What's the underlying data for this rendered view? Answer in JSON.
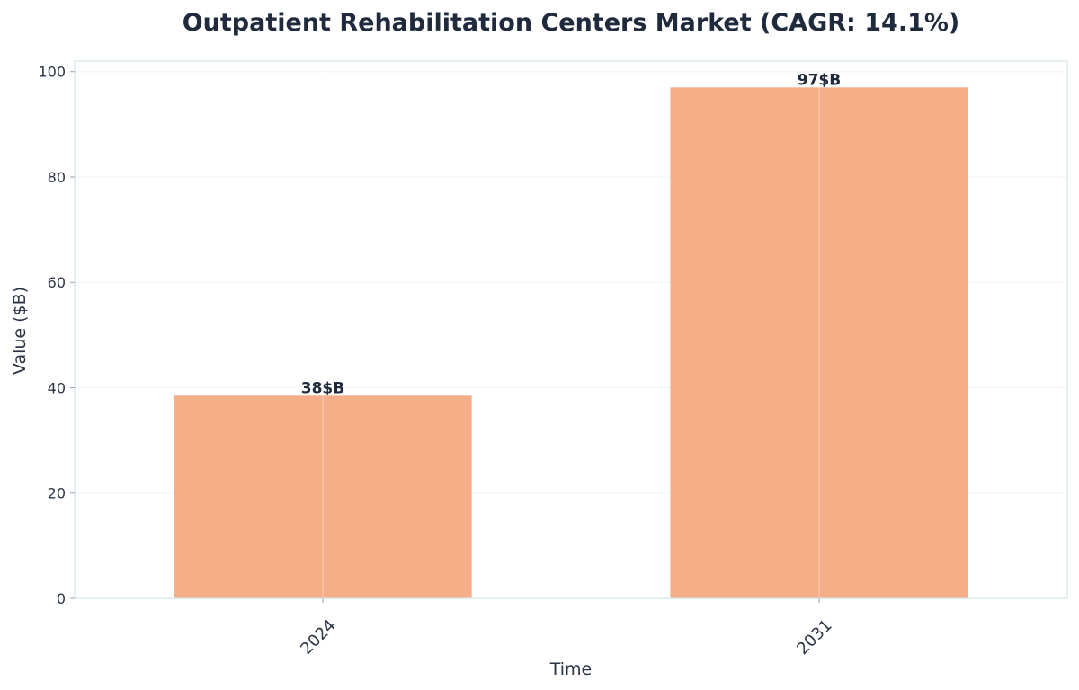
{
  "chart_data": {
    "type": "bar",
    "title": "Outpatient Rehabilitation Centers Market (CAGR: 14.1%)",
    "xlabel": "Time",
    "ylabel": "Value ($B)",
    "categories": [
      "2024",
      "2031"
    ],
    "values": [
      38.5,
      97
    ],
    "data_labels": [
      "38$B",
      "97$B"
    ],
    "ylim": [
      0,
      102
    ],
    "yticks": [
      0,
      20,
      40,
      60,
      80,
      100
    ],
    "grid": true,
    "bar_color": "#f5ae88"
  }
}
